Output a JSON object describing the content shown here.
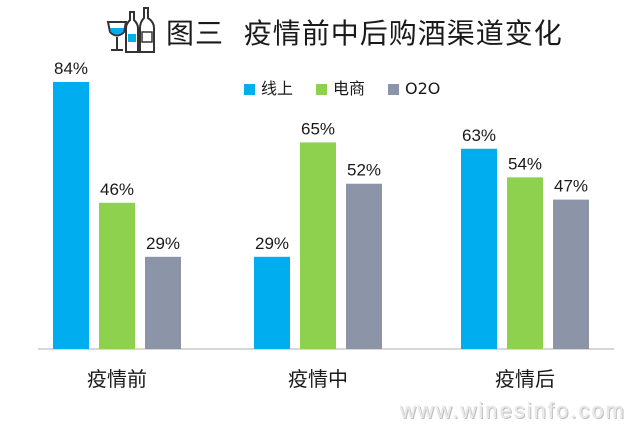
{
  "title": "图三  疫情前中后购酒渠道变化",
  "icon": "wine-bottles-icon",
  "watermark": "www.winesinfo.com",
  "colors": {
    "线上": "#00AEEF",
    "电商": "#8DD14F",
    "O2O": "#8C95A8"
  },
  "chart_data": {
    "type": "bar",
    "title": "图三  疫情前中后购酒渠道变化",
    "categories": [
      "疫情前",
      "疫情中",
      "疫情后"
    ],
    "series": [
      {
        "name": "线上",
        "values": [
          84,
          29,
          63
        ]
      },
      {
        "name": "电商",
        "values": [
          46,
          65,
          54
        ]
      },
      {
        "name": "O2O",
        "values": [
          29,
          52,
          47
        ]
      }
    ],
    "value_suffix": "%",
    "ylim": [
      0,
      84
    ],
    "grid": false,
    "legend": "top-center",
    "xlabel": "",
    "ylabel": ""
  }
}
